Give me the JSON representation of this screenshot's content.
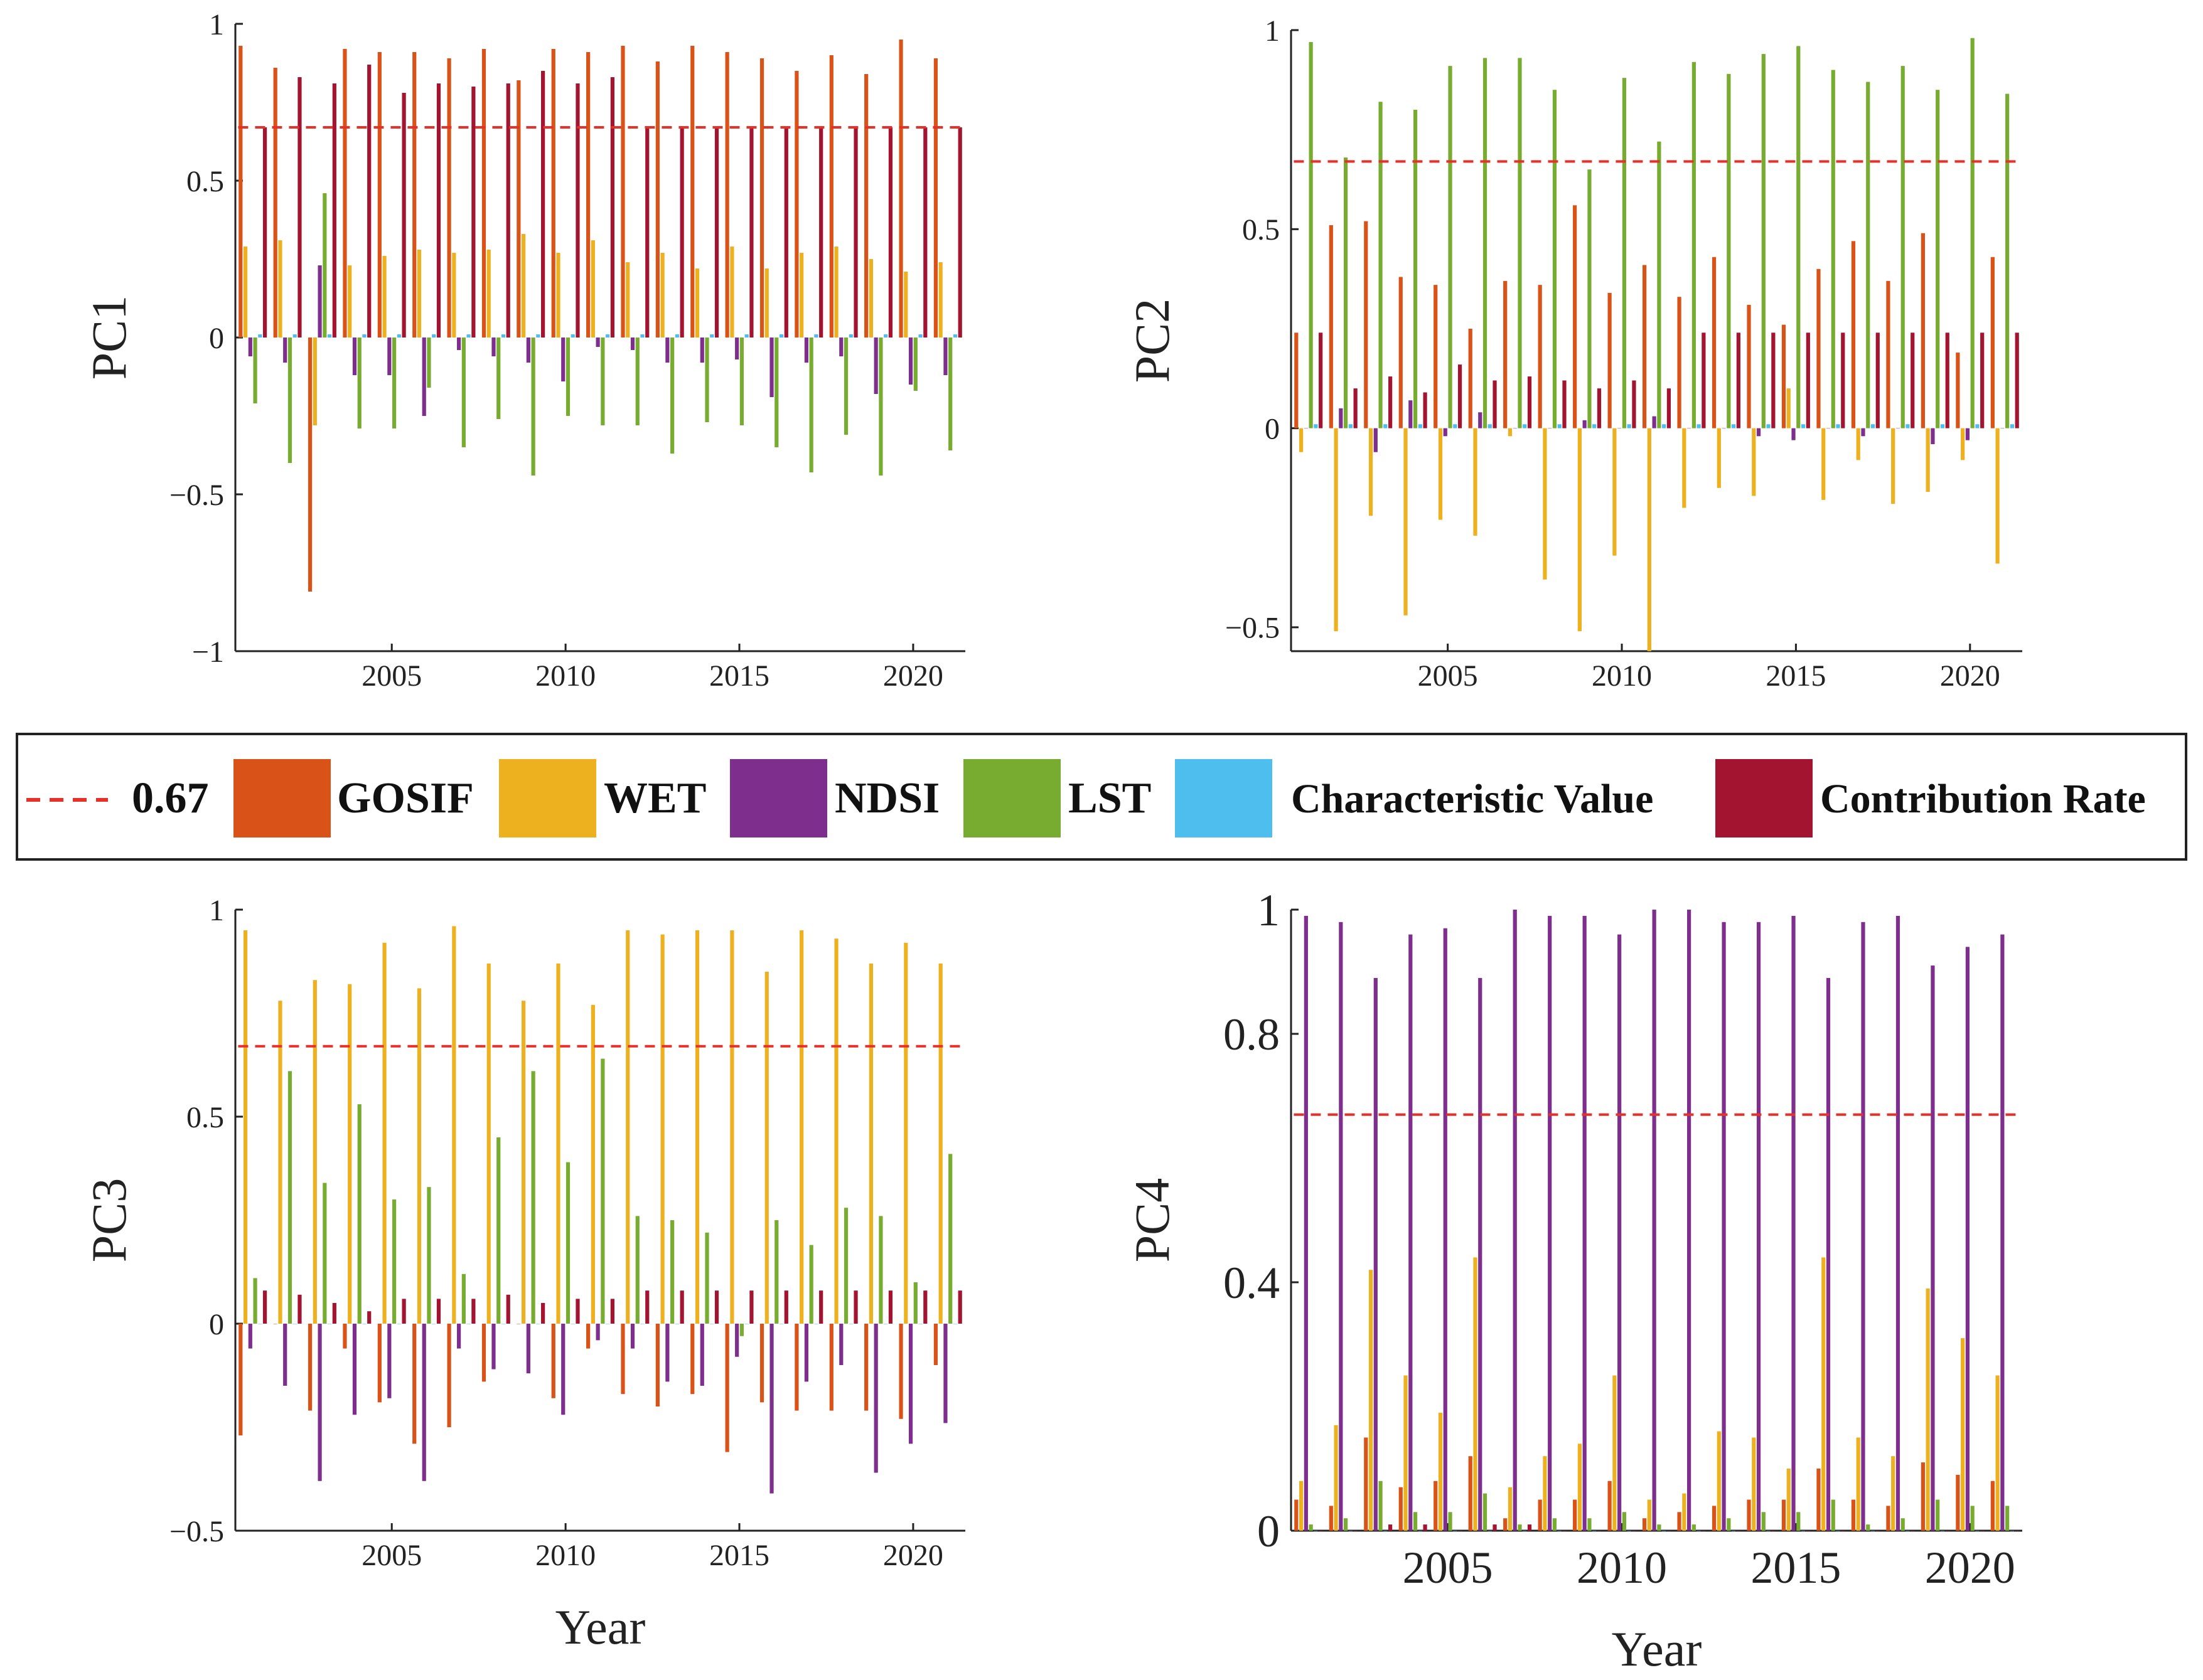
{
  "legend": [
    {
      "key": "threshold",
      "label": "0.67",
      "color": "#e8302a",
      "style": "dashed"
    },
    {
      "key": "gosif",
      "label": "GOSIF",
      "color": "#d95319"
    },
    {
      "key": "wet",
      "label": "WET",
      "color": "#edb120"
    },
    {
      "key": "ndsi",
      "label": "NDSI",
      "color": "#7e2f8e"
    },
    {
      "key": "lst",
      "label": "LST",
      "color": "#77ac30"
    },
    {
      "key": "cv",
      "label": "Characteristic Value",
      "color": "#4dbeee"
    },
    {
      "key": "cr",
      "label": "Contribution Rate",
      "color": "#a2142f"
    }
  ],
  "chart_data": [
    {
      "type": "bar",
      "ylabel": "PC1",
      "xlabel": "",
      "ylim": [
        -1,
        1
      ],
      "yticks": [
        -1,
        -0.5,
        0,
        0.5,
        1
      ],
      "ytick_labels": [
        "−1",
        "−0.5",
        "0",
        "0.5",
        "1"
      ],
      "xlim": [
        2000.5,
        2021.5
      ],
      "xticks": [
        2005,
        2010,
        2015,
        2020
      ],
      "xtick_labels": [
        "2005",
        "2010",
        "2015",
        "2020"
      ],
      "threshold": 0.67,
      "categories": [
        2001,
        2002,
        2003,
        2004,
        2005,
        2006,
        2007,
        2008,
        2009,
        2010,
        2011,
        2012,
        2013,
        2014,
        2015,
        2016,
        2017,
        2018,
        2019,
        2020,
        2021
      ],
      "series": [
        {
          "name": "GOSIF",
          "values": [
            0.93,
            0.86,
            -0.81,
            0.92,
            0.91,
            0.91,
            0.89,
            0.92,
            0.82,
            0.92,
            0.91,
            0.93,
            0.88,
            0.93,
            0.91,
            0.89,
            0.85,
            0.9,
            0.84,
            0.95,
            0.89
          ]
        },
        {
          "name": "WET",
          "values": [
            0.29,
            0.31,
            -0.28,
            0.23,
            0.26,
            0.28,
            0.27,
            0.28,
            0.33,
            0.27,
            0.31,
            0.24,
            0.27,
            0.22,
            0.29,
            0.22,
            0.27,
            0.29,
            0.25,
            0.21,
            0.24
          ]
        },
        {
          "name": "NDSI",
          "values": [
            -0.06,
            -0.08,
            0.23,
            -0.12,
            -0.12,
            -0.25,
            -0.04,
            -0.06,
            -0.08,
            -0.14,
            -0.03,
            -0.04,
            -0.08,
            -0.08,
            -0.07,
            -0.19,
            -0.08,
            -0.06,
            -0.18,
            -0.15,
            -0.12
          ]
        },
        {
          "name": "LST",
          "values": [
            -0.21,
            -0.4,
            0.46,
            -0.29,
            -0.29,
            -0.16,
            -0.35,
            -0.26,
            -0.44,
            -0.25,
            -0.28,
            -0.28,
            -0.37,
            -0.27,
            -0.28,
            -0.35,
            -0.43,
            -0.31,
            -0.44,
            -0.17,
            -0.36
          ]
        },
        {
          "name": "Characteristic Value",
          "values": [
            0.01,
            0.01,
            0.01,
            0.01,
            0.01,
            0.01,
            0.01,
            0.01,
            0.01,
            0.01,
            0.01,
            0.01,
            0.01,
            0.01,
            0.01,
            0.01,
            0.01,
            0.01,
            0.01,
            0.01,
            0.01
          ]
        },
        {
          "name": "Contribution Rate",
          "values": [
            0.67,
            0.83,
            0.81,
            0.87,
            0.78,
            0.81,
            0.8,
            0.81,
            0.85,
            0.81,
            0.83,
            0.67,
            0.67,
            0.67,
            0.67,
            0.67,
            0.67,
            0.67,
            0.67,
            0.67,
            0.67
          ]
        }
      ]
    },
    {
      "type": "bar",
      "ylabel": "PC2",
      "xlabel": "",
      "ylim": [
        -0.56,
        1
      ],
      "yticks": [
        -0.5,
        0,
        0.5,
        1
      ],
      "ytick_labels": [
        "−0.5",
        "0",
        "0.5",
        "1"
      ],
      "xlim": [
        2000.5,
        2021.5
      ],
      "xticks": [
        2005,
        2010,
        2015,
        2020
      ],
      "xtick_labels": [
        "2005",
        "2010",
        "2015",
        "2020"
      ],
      "threshold": 0.67,
      "categories": [
        2001,
        2002,
        2003,
        2004,
        2005,
        2006,
        2007,
        2008,
        2009,
        2010,
        2011,
        2012,
        2013,
        2014,
        2015,
        2016,
        2017,
        2018,
        2019,
        2020,
        2021
      ],
      "series": [
        {
          "name": "GOSIF",
          "values": [
            0.24,
            0.51,
            0.52,
            0.38,
            0.36,
            0.25,
            0.37,
            0.36,
            0.56,
            0.34,
            0.41,
            0.33,
            0.43,
            0.31,
            0.26,
            0.4,
            0.47,
            0.37,
            0.49,
            0.19,
            0.43
          ]
        },
        {
          "name": "WET",
          "values": [
            -0.06,
            -0.51,
            -0.22,
            -0.47,
            -0.23,
            -0.27,
            -0.02,
            -0.38,
            -0.51,
            -0.32,
            -0.56,
            -0.2,
            -0.15,
            -0.17,
            0.1,
            -0.18,
            -0.08,
            -0.19,
            -0.16,
            -0.08,
            -0.34
          ]
        },
        {
          "name": "NDSI",
          "values": [
            0.0,
            0.05,
            -0.06,
            0.07,
            -0.02,
            0.04,
            0.0,
            0.0,
            0.02,
            0.0,
            0.03,
            0.0,
            0.0,
            -0.02,
            -0.03,
            0.0,
            -0.02,
            0.0,
            -0.04,
            -0.03,
            0.0
          ]
        },
        {
          "name": "LST",
          "values": [
            0.97,
            0.68,
            0.82,
            0.8,
            0.91,
            0.93,
            0.93,
            0.85,
            0.65,
            0.88,
            0.72,
            0.92,
            0.89,
            0.94,
            0.96,
            0.9,
            0.87,
            0.91,
            0.85,
            0.98,
            0.84
          ]
        },
        {
          "name": "Characteristic Value",
          "values": [
            0.01,
            0.01,
            0.01,
            0.01,
            0.01,
            0.01,
            0.01,
            0.01,
            0.01,
            0.01,
            0.01,
            0.01,
            0.01,
            0.01,
            0.01,
            0.01,
            0.01,
            0.01,
            0.01,
            0.01,
            0.01
          ]
        },
        {
          "name": "Contribution Rate",
          "values": [
            0.24,
            0.1,
            0.13,
            0.09,
            0.16,
            0.12,
            0.13,
            0.12,
            0.1,
            0.12,
            0.1,
            0.24,
            0.24,
            0.24,
            0.24,
            0.24,
            0.24,
            0.24,
            0.24,
            0.24,
            0.24
          ]
        }
      ]
    },
    {
      "type": "bar",
      "ylabel": "PC3",
      "xlabel": "Year",
      "ylim": [
        -0.5,
        1
      ],
      "yticks": [
        -0.5,
        0,
        0.5,
        1
      ],
      "ytick_labels": [
        "−0.5",
        "0",
        "0.5",
        "1"
      ],
      "xlim": [
        2000.5,
        2021.5
      ],
      "xticks": [
        2005,
        2010,
        2015,
        2020
      ],
      "xtick_labels": [
        "2005",
        "2010",
        "2015",
        "2020"
      ],
      "threshold": 0.67,
      "categories": [
        2001,
        2002,
        2003,
        2004,
        2005,
        2006,
        2007,
        2008,
        2009,
        2010,
        2011,
        2012,
        2013,
        2014,
        2015,
        2016,
        2017,
        2018,
        2019,
        2020,
        2021
      ],
      "series": [
        {
          "name": "GOSIF",
          "values": [
            -0.27,
            0.0,
            -0.21,
            -0.06,
            -0.19,
            -0.29,
            -0.25,
            -0.14,
            0.0,
            -0.18,
            -0.06,
            -0.17,
            -0.2,
            -0.17,
            -0.31,
            -0.19,
            -0.21,
            -0.21,
            -0.21,
            -0.23,
            -0.1
          ]
        },
        {
          "name": "WET",
          "values": [
            0.95,
            0.78,
            0.83,
            0.82,
            0.92,
            0.81,
            0.96,
            0.87,
            0.78,
            0.87,
            0.77,
            0.95,
            0.94,
            0.95,
            0.95,
            0.85,
            0.95,
            0.93,
            0.87,
            0.92,
            0.87
          ]
        },
        {
          "name": "NDSI",
          "values": [
            -0.06,
            -0.15,
            -0.38,
            -0.22,
            -0.18,
            -0.38,
            -0.06,
            -0.11,
            -0.12,
            -0.22,
            -0.04,
            -0.06,
            -0.14,
            -0.15,
            -0.08,
            -0.41,
            -0.14,
            -0.1,
            -0.36,
            -0.29,
            -0.24
          ]
        },
        {
          "name": "LST",
          "values": [
            0.11,
            0.61,
            0.34,
            0.53,
            0.3,
            0.33,
            0.12,
            0.45,
            0.61,
            0.39,
            0.64,
            0.26,
            0.25,
            0.22,
            -0.03,
            0.25,
            0.19,
            0.28,
            0.26,
            0.1,
            0.41
          ]
        },
        {
          "name": "Characteristic Value",
          "values": [
            0.0,
            0.0,
            0.0,
            0.0,
            0.0,
            0.0,
            0.0,
            0.0,
            0.0,
            0.0,
            0.0,
            0.0,
            0.0,
            0.0,
            0.0,
            0.0,
            0.0,
            0.0,
            0.0,
            0.0,
            0.0
          ]
        },
        {
          "name": "Contribution Rate",
          "values": [
            0.08,
            0.07,
            0.05,
            0.03,
            0.06,
            0.06,
            0.06,
            0.07,
            0.05,
            0.06,
            0.06,
            0.08,
            0.08,
            0.08,
            0.08,
            0.08,
            0.08,
            0.08,
            0.08,
            0.08,
            0.08
          ]
        }
      ]
    },
    {
      "type": "bar",
      "ylabel": "PC4",
      "xlabel": "Year",
      "ylim": [
        0,
        1
      ],
      "yticks": [
        0,
        0.4,
        0.8,
        1
      ],
      "ytick_labels": [
        "0",
        "0.4",
        "0.8",
        "1"
      ],
      "xlim": [
        2000.5,
        2021.5
      ],
      "xticks": [
        2005,
        2010,
        2015,
        2020
      ],
      "xtick_labels": [
        "2005",
        "2010",
        "2015",
        "2020"
      ],
      "threshold": 0.67,
      "categories": [
        2001,
        2002,
        2003,
        2004,
        2005,
        2006,
        2007,
        2008,
        2009,
        2010,
        2011,
        2012,
        2013,
        2014,
        2015,
        2016,
        2017,
        2018,
        2019,
        2020,
        2021
      ],
      "series": [
        {
          "name": "GOSIF",
          "values": [
            0.05,
            0.04,
            0.15,
            0.07,
            0.08,
            0.12,
            0.02,
            0.05,
            0.05,
            0.08,
            0.02,
            0.03,
            0.04,
            0.05,
            0.05,
            0.1,
            0.05,
            0.04,
            0.11,
            0.09,
            0.08
          ]
        },
        {
          "name": "WET",
          "values": [
            0.08,
            0.17,
            0.42,
            0.25,
            0.19,
            0.44,
            0.07,
            0.12,
            0.14,
            0.25,
            0.05,
            0.06,
            0.16,
            0.15,
            0.1,
            0.44,
            0.15,
            0.12,
            0.39,
            0.31,
            0.25
          ]
        },
        {
          "name": "NDSI",
          "values": [
            0.99,
            0.98,
            0.89,
            0.96,
            0.97,
            0.89,
            1.0,
            0.99,
            0.99,
            0.96,
            1.0,
            1.0,
            0.98,
            0.98,
            0.99,
            0.89,
            0.98,
            0.99,
            0.91,
            0.94,
            0.96
          ]
        },
        {
          "name": "LST",
          "values": [
            0.01,
            0.02,
            0.08,
            0.03,
            0.03,
            0.06,
            0.01,
            0.02,
            0.02,
            0.03,
            0.01,
            0.01,
            0.02,
            0.03,
            0.03,
            0.05,
            0.01,
            0.02,
            0.05,
            0.04,
            0.04
          ]
        },
        {
          "name": "Characteristic Value",
          "values": [
            0.0,
            0.0,
            0.0,
            0.0,
            0.0,
            0.0,
            0.0,
            0.0,
            0.0,
            0.0,
            0.0,
            0.0,
            0.0,
            0.0,
            0.0,
            0.0,
            0.0,
            0.0,
            0.0,
            0.0,
            0.0
          ]
        },
        {
          "name": "Contribution Rate",
          "values": [
            0.0,
            0.0,
            0.01,
            0.01,
            0.0,
            0.01,
            0.01,
            0.0,
            0.0,
            0.0,
            0.0,
            0.0,
            0.0,
            0.0,
            0.0,
            0.0,
            0.0,
            0.0,
            0.0,
            0.0,
            0.0
          ]
        }
      ]
    }
  ]
}
